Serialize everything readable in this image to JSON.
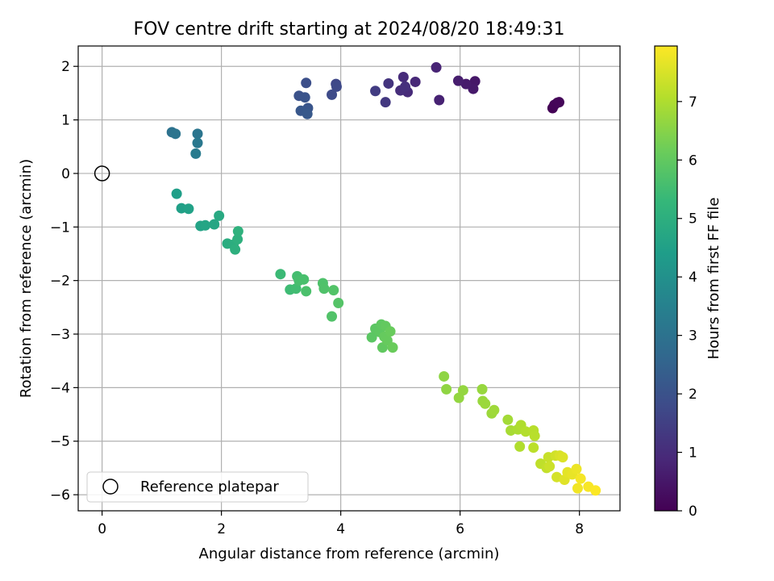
{
  "chart_data": {
    "type": "scatter",
    "title": "FOV centre drift starting at 2024/08/20 18:49:31",
    "xlabel": "Angular distance from reference (arcmin)",
    "ylabel": "Rotation from reference (arcmin)",
    "xlim": [
      -0.4,
      8.68
    ],
    "ylim": [
      -6.3,
      2.38
    ],
    "xticks": [
      0,
      2,
      4,
      6,
      8
    ],
    "yticks": [
      2,
      1,
      0,
      -1,
      -2,
      -3,
      -4,
      -5,
      -6
    ],
    "grid": true,
    "legend": {
      "placement": "lower left",
      "entries": [
        "Reference platepar"
      ]
    },
    "reference": {
      "x": 0,
      "y": 0,
      "label": "Reference platepar"
    },
    "colorbar": {
      "label": "Hours from first FF file",
      "colormap": "viridis",
      "range": [
        0,
        7.95
      ],
      "ticks": [
        0,
        1,
        2,
        3,
        4,
        5,
        6,
        7
      ]
    },
    "points": [
      {
        "x": 7.55,
        "y": 1.22,
        "c": 0.05
      },
      {
        "x": 7.58,
        "y": 1.28,
        "c": 0.08
      },
      {
        "x": 7.63,
        "y": 1.32,
        "c": 0.1
      },
      {
        "x": 7.66,
        "y": 1.33,
        "c": 0.12
      },
      {
        "x": 6.25,
        "y": 1.72,
        "c": 0.5
      },
      {
        "x": 6.22,
        "y": 1.58,
        "c": 0.55
      },
      {
        "x": 6.1,
        "y": 1.67,
        "c": 0.6
      },
      {
        "x": 5.97,
        "y": 1.73,
        "c": 0.65
      },
      {
        "x": 5.65,
        "y": 1.37,
        "c": 0.75
      },
      {
        "x": 5.6,
        "y": 1.98,
        "c": 0.8
      },
      {
        "x": 5.25,
        "y": 1.71,
        "c": 0.9
      },
      {
        "x": 5.12,
        "y": 1.52,
        "c": 0.95
      },
      {
        "x": 5.05,
        "y": 1.8,
        "c": 1.0
      },
      {
        "x": 5.0,
        "y": 1.55,
        "c": 1.05
      },
      {
        "x": 5.08,
        "y": 1.62,
        "c": 1.1
      },
      {
        "x": 4.8,
        "y": 1.68,
        "c": 1.2
      },
      {
        "x": 4.75,
        "y": 1.33,
        "c": 1.3
      },
      {
        "x": 4.58,
        "y": 1.54,
        "c": 1.4
      },
      {
        "x": 3.92,
        "y": 1.67,
        "c": 1.7
      },
      {
        "x": 3.93,
        "y": 1.62,
        "c": 1.75
      },
      {
        "x": 3.85,
        "y": 1.47,
        "c": 1.8
      },
      {
        "x": 3.42,
        "y": 1.69,
        "c": 1.9
      },
      {
        "x": 3.3,
        "y": 1.45,
        "c": 2.0
      },
      {
        "x": 3.4,
        "y": 1.42,
        "c": 2.05
      },
      {
        "x": 3.45,
        "y": 1.22,
        "c": 2.1
      },
      {
        "x": 3.33,
        "y": 1.17,
        "c": 2.15
      },
      {
        "x": 3.44,
        "y": 1.11,
        "c": 2.2
      },
      {
        "x": 1.17,
        "y": 0.77,
        "c": 3.0
      },
      {
        "x": 1.23,
        "y": 0.74,
        "c": 3.05
      },
      {
        "x": 1.6,
        "y": 0.74,
        "c": 3.1
      },
      {
        "x": 1.6,
        "y": 0.57,
        "c": 3.2
      },
      {
        "x": 1.57,
        "y": 0.37,
        "c": 3.3
      },
      {
        "x": 1.25,
        "y": -0.38,
        "c": 4.45
      },
      {
        "x": 1.33,
        "y": -0.65,
        "c": 4.5
      },
      {
        "x": 1.45,
        "y": -0.66,
        "c": 4.55
      },
      {
        "x": 1.65,
        "y": -0.98,
        "c": 4.6
      },
      {
        "x": 1.73,
        "y": -0.97,
        "c": 4.65
      },
      {
        "x": 1.88,
        "y": -0.95,
        "c": 4.7
      },
      {
        "x": 1.96,
        "y": -0.79,
        "c": 4.8
      },
      {
        "x": 2.1,
        "y": -1.31,
        "c": 4.9
      },
      {
        "x": 2.2,
        "y": -1.33,
        "c": 4.95
      },
      {
        "x": 2.23,
        "y": -1.42,
        "c": 5.0
      },
      {
        "x": 2.27,
        "y": -1.23,
        "c": 5.05
      },
      {
        "x": 2.28,
        "y": -1.08,
        "c": 5.1
      },
      {
        "x": 2.99,
        "y": -1.88,
        "c": 5.4
      },
      {
        "x": 3.15,
        "y": -2.17,
        "c": 5.45
      },
      {
        "x": 3.25,
        "y": -2.15,
        "c": 5.5
      },
      {
        "x": 3.27,
        "y": -1.92,
        "c": 5.55
      },
      {
        "x": 3.3,
        "y": -2.0,
        "c": 5.6
      },
      {
        "x": 3.38,
        "y": -1.98,
        "c": 5.62
      },
      {
        "x": 3.42,
        "y": -2.2,
        "c": 5.65
      },
      {
        "x": 3.7,
        "y": -2.05,
        "c": 5.7
      },
      {
        "x": 3.72,
        "y": -2.15,
        "c": 5.72
      },
      {
        "x": 3.85,
        "y": -2.67,
        "c": 5.75
      },
      {
        "x": 3.88,
        "y": -2.18,
        "c": 5.78
      },
      {
        "x": 3.96,
        "y": -2.42,
        "c": 5.8
      },
      {
        "x": 4.52,
        "y": -3.06,
        "c": 5.9
      },
      {
        "x": 4.58,
        "y": -2.9,
        "c": 5.92
      },
      {
        "x": 4.65,
        "y": -2.96,
        "c": 5.95
      },
      {
        "x": 4.68,
        "y": -2.82,
        "c": 5.97
      },
      {
        "x": 4.7,
        "y": -3.25,
        "c": 6.0
      },
      {
        "x": 4.75,
        "y": -2.85,
        "c": 6.02
      },
      {
        "x": 4.73,
        "y": -3.05,
        "c": 6.05
      },
      {
        "x": 4.78,
        "y": -3.12,
        "c": 6.07
      },
      {
        "x": 4.83,
        "y": -2.95,
        "c": 6.1
      },
      {
        "x": 4.87,
        "y": -3.25,
        "c": 6.12
      },
      {
        "x": 5.73,
        "y": -3.79,
        "c": 6.6
      },
      {
        "x": 5.77,
        "y": -4.03,
        "c": 6.62
      },
      {
        "x": 5.98,
        "y": -4.19,
        "c": 6.65
      },
      {
        "x": 6.05,
        "y": -4.05,
        "c": 6.67
      },
      {
        "x": 6.37,
        "y": -4.03,
        "c": 6.7
      },
      {
        "x": 6.38,
        "y": -4.25,
        "c": 6.72
      },
      {
        "x": 6.42,
        "y": -4.3,
        "c": 6.75
      },
      {
        "x": 6.53,
        "y": -4.48,
        "c": 6.77
      },
      {
        "x": 6.57,
        "y": -4.42,
        "c": 6.8
      },
      {
        "x": 6.8,
        "y": -4.6,
        "c": 6.85
      },
      {
        "x": 6.85,
        "y": -4.8,
        "c": 6.9
      },
      {
        "x": 6.97,
        "y": -4.78,
        "c": 6.95
      },
      {
        "x": 7.02,
        "y": -4.7,
        "c": 7.0
      },
      {
        "x": 7.0,
        "y": -5.1,
        "c": 7.02
      },
      {
        "x": 7.1,
        "y": -4.82,
        "c": 7.05
      },
      {
        "x": 7.23,
        "y": -4.8,
        "c": 7.1
      },
      {
        "x": 7.25,
        "y": -4.9,
        "c": 7.12
      },
      {
        "x": 7.23,
        "y": -5.12,
        "c": 7.15
      },
      {
        "x": 7.35,
        "y": -5.42,
        "c": 7.2
      },
      {
        "x": 7.45,
        "y": -5.5,
        "c": 7.25
      },
      {
        "x": 7.48,
        "y": -5.3,
        "c": 7.3
      },
      {
        "x": 7.5,
        "y": -5.47,
        "c": 7.35
      },
      {
        "x": 7.6,
        "y": -5.27,
        "c": 7.4
      },
      {
        "x": 7.62,
        "y": -5.67,
        "c": 7.45
      },
      {
        "x": 7.67,
        "y": -5.27,
        "c": 7.5
      },
      {
        "x": 7.72,
        "y": -5.3,
        "c": 7.55
      },
      {
        "x": 7.75,
        "y": -5.72,
        "c": 7.6
      },
      {
        "x": 7.8,
        "y": -5.58,
        "c": 7.65
      },
      {
        "x": 7.88,
        "y": -5.62,
        "c": 7.7
      },
      {
        "x": 7.95,
        "y": -5.52,
        "c": 7.75
      },
      {
        "x": 7.97,
        "y": -5.88,
        "c": 7.8
      },
      {
        "x": 8.02,
        "y": -5.7,
        "c": 7.85
      },
      {
        "x": 8.15,
        "y": -5.85,
        "c": 7.88
      },
      {
        "x": 8.27,
        "y": -5.92,
        "c": 7.92
      }
    ]
  }
}
